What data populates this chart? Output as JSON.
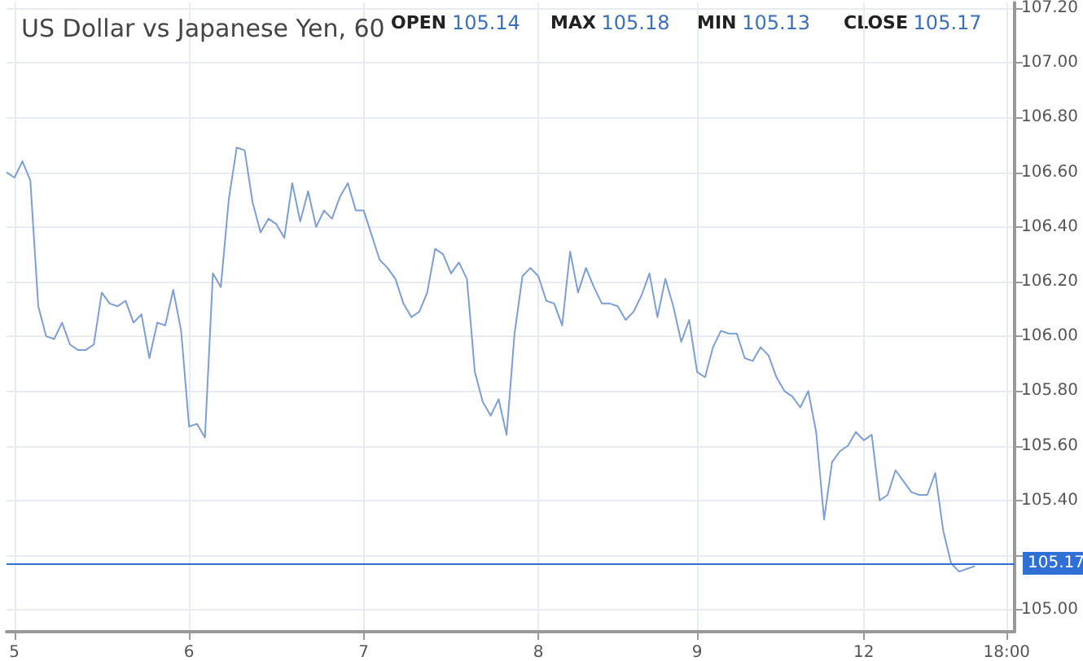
{
  "chart_data": {
    "type": "line",
    "title": "US Dollar vs Japanese Yen, 60",
    "annotations": [
      "OPEN 105.14",
      "MAX 105.18",
      "MIN 105.13",
      "CLOSE 105.17"
    ],
    "categories": [
      null,
      "5",
      null,
      null,
      null,
      null,
      null,
      null,
      null,
      null,
      null,
      null,
      null,
      null,
      null,
      null,
      null,
      null,
      null,
      null,
      null,
      null,
      null,
      "6",
      null,
      null,
      null,
      null,
      null,
      null,
      null,
      null,
      null,
      null,
      null,
      null,
      null,
      null,
      null,
      null,
      null,
      null,
      null,
      null,
      null,
      "7",
      null,
      null,
      null,
      null,
      null,
      null,
      null,
      null,
      null,
      null,
      null,
      null,
      null,
      null,
      null,
      null,
      null,
      null,
      null,
      null,
      null,
      "8",
      null,
      null,
      null,
      null,
      null,
      null,
      null,
      null,
      null,
      null,
      null,
      null,
      null,
      null,
      null,
      null,
      null,
      null,
      null,
      "9",
      null,
      null,
      null,
      null,
      null,
      null,
      null,
      null,
      null,
      null,
      null,
      null,
      null,
      null,
      null,
      null,
      null,
      null,
      null,
      null,
      "12",
      null,
      null,
      null,
      null,
      null,
      null,
      null,
      null,
      null,
      null,
      null,
      null,
      null,
      null,
      null,
      null,
      null,
      "18:00",
      null
    ],
    "series": [
      {
        "color": "#7e9fd0",
        "values": [
          106.6,
          106.58,
          106.64,
          106.57,
          106.11,
          106,
          105.99,
          106.05,
          105.97,
          105.95,
          105.95,
          105.97,
          106.16,
          106.12,
          106.11,
          106.13,
          106.05,
          106.08,
          105.92,
          106.05,
          106.04,
          106.17,
          106.02,
          105.67,
          105.68,
          105.63,
          106.23,
          106.18,
          106.5,
          106.69,
          106.68,
          106.49,
          106.38,
          106.43,
          106.41,
          106.36,
          106.56,
          106.42,
          106.53,
          106.4,
          106.46,
          106.43,
          106.51,
          106.56,
          106.46,
          106.46,
          106.37,
          106.28,
          106.25,
          106.21,
          106.12,
          106.07,
          106.09,
          106.16,
          106.32,
          106.3,
          106.23,
          106.27,
          106.21,
          105.87,
          105.76,
          105.71,
          105.77,
          105.64,
          106.01,
          106.22,
          106.25,
          106.22,
          106.13,
          106.12,
          106.04,
          106.31,
          106.16,
          106.25,
          106.18,
          106.12,
          106.12,
          106.11,
          106.06,
          106.09,
          106.15,
          106.23,
          106.07,
          106.21,
          106.11,
          105.98,
          106.06,
          105.87,
          105.85,
          105.96,
          106.02,
          106.01,
          106.01,
          105.92,
          105.91,
          105.96,
          105.93,
          105.85,
          105.8,
          105.78,
          105.74,
          105.8,
          105.65,
          105.33,
          105.54,
          105.58,
          105.6,
          105.65,
          105.62,
          105.64,
          105.4,
          105.42,
          105.51,
          105.47,
          105.43,
          105.42,
          105.42,
          105.5,
          105.29,
          105.17,
          105.14,
          105.15,
          105.16,
          null,
          null,
          null,
          null,
          null
        ]
      }
    ],
    "ylim": [
      104.92,
      107.22
    ],
    "yticks": [
      {
        "value": 105,
        "label": "105.00"
      },
      {
        "value": 105.2,
        "label": null
      },
      {
        "value": 105.4,
        "label": "105.40"
      },
      {
        "value": 105.6,
        "label": "105.60"
      },
      {
        "value": 105.8,
        "label": "105.80"
      },
      {
        "value": 106,
        "label": "106.00"
      },
      {
        "value": 106.2,
        "label": "106.20"
      },
      {
        "value": 106.4,
        "label": "106.40"
      },
      {
        "value": 106.6,
        "label": "106.60"
      },
      {
        "value": 106.8,
        "label": "106.80"
      },
      {
        "value": 107,
        "label": "107.00"
      },
      {
        "value": 107.2,
        "label": "107.20"
      }
    ],
    "ref_lines": [
      {
        "axis": "y",
        "value": 105.17,
        "label": "105.17",
        "color": "#2f6fd6"
      }
    ],
    "grid": true,
    "marker": "none",
    "line_style": "solid"
  }
}
